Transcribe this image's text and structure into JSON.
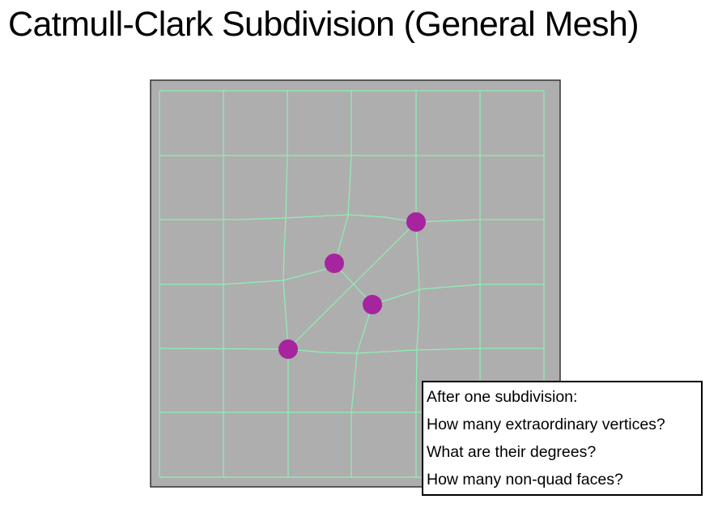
{
  "slide": {
    "title": "Catmull-Clark Subdivision (General Mesh)"
  },
  "diagram": {
    "background_color": "#aeaeae",
    "edge_color": "#8ef0b4",
    "extraordinary_vertex_color": "#a6249f",
    "extraordinary_vertex_count": 4
  },
  "questions": {
    "intro": "After one subdivision:",
    "items": [
      "How many extraordinary vertices?",
      "What are their degrees?",
      "How many non-quad faces?"
    ]
  }
}
